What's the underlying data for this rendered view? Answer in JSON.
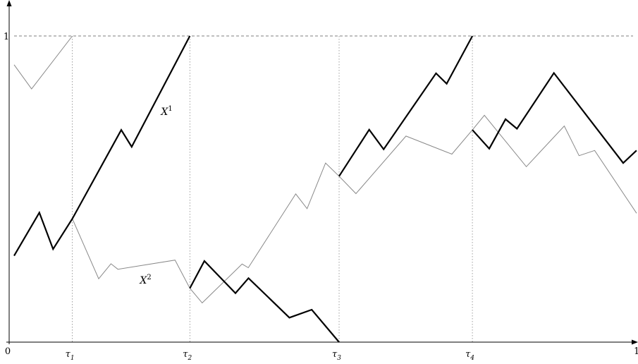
{
  "chart_data": {
    "type": "line",
    "title": "",
    "xlabel": "",
    "ylabel": "",
    "xlim": [
      0,
      1
    ],
    "ylim": [
      0,
      1
    ],
    "x_ticks": [
      {
        "value": 0,
        "label": "0"
      },
      {
        "value": 1,
        "label": "1"
      }
    ],
    "y_ticks": [
      {
        "value": 1,
        "label": "1"
      }
    ],
    "reference_line": {
      "y": 1,
      "style": "dashed"
    },
    "stopping_times": [
      {
        "name": "τ",
        "index": "1",
        "x": 0.0936
      },
      {
        "name": "τ",
        "index": "2",
        "x": 0.2823
      },
      {
        "name": "τ",
        "index": "3",
        "x": 0.5221
      },
      {
        "name": "τ",
        "index": "4",
        "x": 0.7362
      }
    ],
    "series": [
      {
        "name": "X",
        "superscript": "1",
        "label_at": [
          0.236,
          0.742
        ],
        "color": "#000000",
        "weight": "thick",
        "segments": [
          [
            [
              0.0,
              0.282
            ],
            [
              0.0405,
              0.423
            ],
            [
              0.0626,
              0.304
            ],
            [
              0.0936,
              0.403
            ],
            [
              0.1721,
              0.693
            ],
            [
              0.1889,
              0.638
            ],
            [
              0.2823,
              1.0
            ]
          ],
          [
            [
              0.2823,
              0.176
            ],
            [
              0.3057,
              0.265
            ],
            [
              0.3556,
              0.16
            ],
            [
              0.3766,
              0.209
            ],
            [
              0.4422,
              0.08
            ],
            [
              0.4781,
              0.106
            ],
            [
              0.5221,
              0.0
            ]
          ],
          [
            [
              0.5221,
              0.542
            ],
            [
              0.5704,
              0.694
            ],
            [
              0.5937,
              0.63
            ],
            [
              0.6778,
              0.878
            ],
            [
              0.6949,
              0.844
            ],
            [
              0.7362,
              1.0
            ]
          ],
          [
            [
              0.7362,
              0.693
            ],
            [
              0.7633,
              0.632
            ],
            [
              0.7895,
              0.728
            ],
            [
              0.8078,
              0.697
            ],
            [
              0.8672,
              0.879
            ],
            [
              0.9785,
              0.585
            ],
            [
              0.9999,
              0.626
            ]
          ]
        ]
      },
      {
        "name": "X",
        "superscript": "2",
        "label_at": [
          0.202,
          0.191
        ],
        "color": "#888888",
        "weight": "thin",
        "segments": [
          [
            [
              0.0,
              0.906
            ],
            [
              0.0281,
              0.827
            ],
            [
              0.0936,
              1.0
            ]
          ],
          [
            [
              0.0936,
              0.403
            ],
            [
              0.1359,
              0.207
            ],
            [
              0.1556,
              0.256
            ],
            [
              0.1667,
              0.238
            ],
            [
              0.2586,
              0.268
            ],
            [
              0.2823,
              0.176
            ],
            [
              0.3022,
              0.128
            ],
            [
              0.3662,
              0.255
            ],
            [
              0.3762,
              0.243
            ],
            [
              0.4524,
              0.484
            ],
            [
              0.4707,
              0.436
            ],
            [
              0.5003,
              0.585
            ],
            [
              0.5221,
              0.542
            ],
            [
              0.5492,
              0.485
            ],
            [
              0.6296,
              0.673
            ],
            [
              0.7033,
              0.614
            ],
            [
              0.7362,
              0.693
            ],
            [
              0.7555,
              0.741
            ],
            [
              0.8229,
              0.573
            ],
            [
              0.8838,
              0.706
            ],
            [
              0.9076,
              0.609
            ],
            [
              0.9326,
              0.626
            ],
            [
              1.0,
              0.421
            ]
          ]
        ]
      }
    ]
  }
}
